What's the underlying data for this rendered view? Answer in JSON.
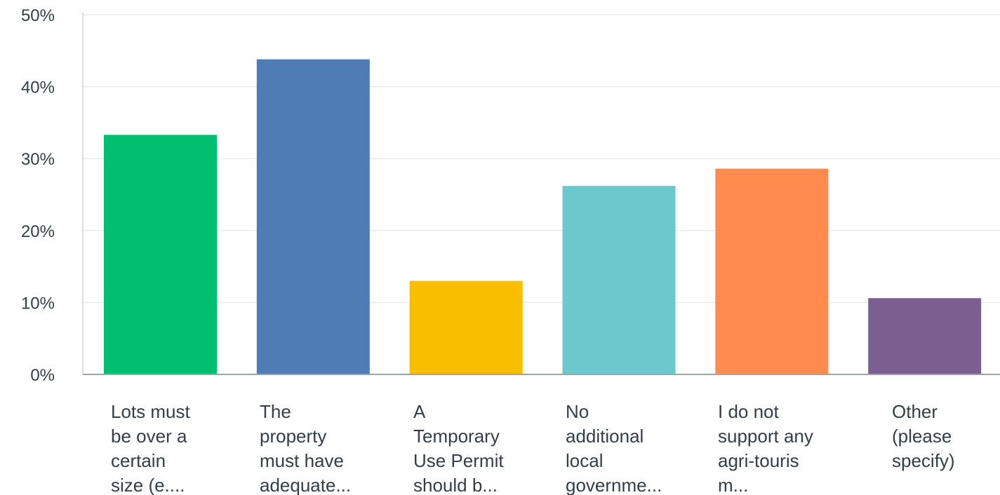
{
  "chart_data": {
    "type": "bar",
    "title": "",
    "xlabel": "",
    "ylabel": "",
    "ylim": [
      0,
      50
    ],
    "y_ticks": [
      "0%",
      "10%",
      "20%",
      "30%",
      "40%",
      "50%"
    ],
    "y_tick_values": [
      0,
      10,
      20,
      30,
      40,
      50
    ],
    "grid": true,
    "categories": [
      [
        "Lots must",
        "be over a",
        "certain",
        "size (e...."
      ],
      [
        "The",
        "property",
        "must have",
        "adequate..."
      ],
      [
        "A",
        "Temporary",
        "Use Permit",
        "should b..."
      ],
      [
        "No",
        "additional",
        "local",
        "governme..."
      ],
      [
        "I do not",
        "support any",
        "agri-touris",
        "m..."
      ],
      [
        "Other",
        "(please",
        "specify)"
      ]
    ],
    "values": [
      33.3,
      43.8,
      13.0,
      26.2,
      28.6,
      10.6
    ],
    "colors": [
      "#00bf6f",
      "#507cb6",
      "#f9be00",
      "#6bc8cd",
      "#ff8b4f",
      "#7d5e90"
    ]
  }
}
